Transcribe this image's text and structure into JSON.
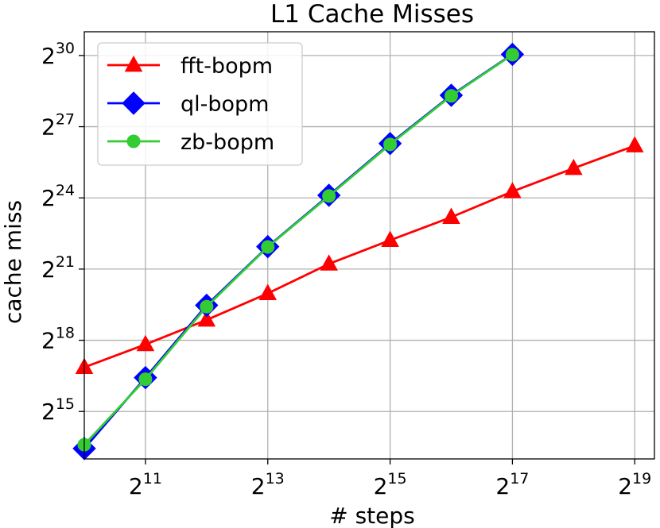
{
  "chart_data": {
    "type": "line",
    "title": "L1 Cache Misses",
    "xlabel": "# steps",
    "ylabel": "cache miss",
    "x_scale": "log2",
    "y_scale": "log2",
    "xlim": [
      1024,
      655360
    ],
    "ylim": [
      8192,
      2147483648
    ],
    "grid": true,
    "legend_position": "top-left",
    "x_ticks": [
      {
        "value": 2048,
        "base": "2",
        "exp": "11"
      },
      {
        "value": 8192,
        "base": "2",
        "exp": "13"
      },
      {
        "value": 32768,
        "base": "2",
        "exp": "15"
      },
      {
        "value": 131072,
        "base": "2",
        "exp": "17"
      },
      {
        "value": 524288,
        "base": "2",
        "exp": "19"
      }
    ],
    "y_ticks": [
      {
        "value": 32768,
        "base": "2",
        "exp": "15"
      },
      {
        "value": 262144,
        "base": "2",
        "exp": "18"
      },
      {
        "value": 2097152,
        "base": "2",
        "exp": "21"
      },
      {
        "value": 16777216,
        "base": "2",
        "exp": "24"
      },
      {
        "value": 134217728,
        "base": "2",
        "exp": "27"
      },
      {
        "value": 1073741824,
        "base": "2",
        "exp": "30"
      }
    ],
    "series": [
      {
        "name": "fft-bopm",
        "color": "#ff0000",
        "marker": "triangle",
        "x": [
          1024,
          2048,
          4096,
          8192,
          16384,
          32768,
          65536,
          131072,
          262144,
          524288
        ],
        "y": [
          119000,
          232000,
          475000,
          1030000,
          2440000,
          4870000,
          9550000,
          20200000,
          39800000,
          77000000
        ]
      },
      {
        "name": "ql-bopm",
        "color": "#0000ff",
        "marker": "diamond",
        "x": [
          1024,
          2048,
          4096,
          8192,
          16384,
          32768,
          65536,
          131072
        ],
        "y": [
          11100,
          88000,
          728000,
          4040000,
          18100000,
          82000000,
          336000000,
          1110000000
        ]
      },
      {
        "name": "zb-bopm",
        "color": "#33cc33",
        "marker": "circle",
        "x": [
          1024,
          2048,
          4096,
          8192,
          16384,
          32768,
          65536,
          131072
        ],
        "y": [
          12400,
          84000,
          700000,
          4000000,
          17700000,
          80000000,
          330000000,
          1100000000
        ]
      }
    ]
  }
}
